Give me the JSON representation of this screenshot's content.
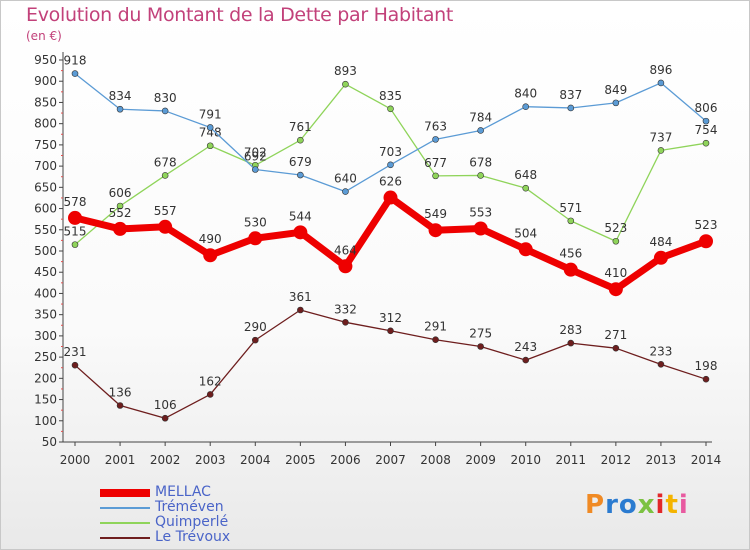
{
  "title": "Evolution du Montant de la Dette par Habitant",
  "unit": "(en €)",
  "brand": {
    "text": "Proxiti",
    "colors": [
      "#f08a24",
      "#2b7bd0",
      "#2b7bd0",
      "#7cc242",
      "#e2272a",
      "#f4b400",
      "#e85aa0"
    ]
  },
  "chart_data": {
    "type": "line",
    "x": [
      2000,
      2001,
      2002,
      2003,
      2004,
      2005,
      2006,
      2007,
      2008,
      2009,
      2010,
      2011,
      2012,
      2013,
      2014
    ],
    "ylim": [
      50,
      950
    ],
    "yticks": [
      50,
      100,
      150,
      200,
      250,
      300,
      350,
      400,
      450,
      500,
      550,
      600,
      650,
      700,
      750,
      800,
      850,
      900,
      950
    ],
    "grid": false,
    "legend_position": "bottom-left",
    "series": [
      {
        "name": "Le Trévoux",
        "color": "#6e1e1e",
        "width": 1.3,
        "r": 3,
        "values": [
          231,
          136,
          106,
          162,
          290,
          361,
          332,
          312,
          291,
          275,
          243,
          283,
          271,
          233,
          198
        ]
      },
      {
        "name": "Quimperlé",
        "color": "#8fd45a",
        "width": 1.3,
        "r": 3,
        "values": [
          515,
          606,
          678,
          748,
          702,
          761,
          893,
          835,
          677,
          678,
          648,
          571,
          523,
          737,
          754
        ]
      },
      {
        "name": "Tréméven",
        "color": "#5b9bd5",
        "width": 1.3,
        "r": 3,
        "values": [
          918,
          834,
          830,
          791,
          692,
          679,
          640,
          703,
          763,
          784,
          840,
          837,
          849,
          896,
          806
        ]
      },
      {
        "name": "MELLAC",
        "color": "#ee0000",
        "width": 7,
        "r": 7,
        "values": [
          578,
          552,
          557,
          490,
          530,
          544,
          464,
          626,
          549,
          553,
          504,
          456,
          410,
          484,
          523
        ]
      }
    ]
  }
}
